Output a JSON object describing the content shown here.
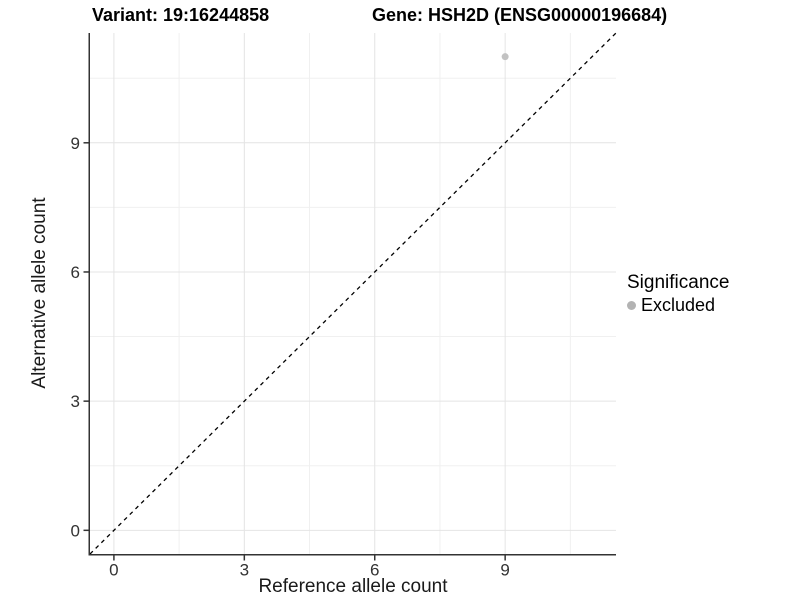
{
  "titles": {
    "variant": "Variant: 19:16244858",
    "gene": "Gene: HSH2D (ENSG00000196684)"
  },
  "chart_data": {
    "type": "scatter",
    "title_left": "Variant: 19:16244858",
    "title_right": "Gene: HSH2D (ENSG00000196684)",
    "xlabel": "Reference allele count",
    "ylabel": "Alternative allele count",
    "xlim": [
      -0.55,
      11.55
    ],
    "ylim": [
      -0.55,
      11.55
    ],
    "x_ticks": [
      0,
      3,
      6,
      9
    ],
    "y_ticks": [
      0,
      3,
      6,
      9
    ],
    "x_minor_ticks": [
      1.5,
      4.5,
      7.5,
      10.5
    ],
    "y_minor_ticks": [
      1.5,
      4.5,
      7.5,
      10.5
    ],
    "grid": true,
    "points": [
      {
        "x": 9,
        "y": 11,
        "significance": "Excluded"
      }
    ],
    "diagonal": {
      "slope": 1,
      "intercept": 0,
      "style": "dashed"
    },
    "legend": {
      "position": "right",
      "title": "Significance",
      "entries": [
        {
          "label": "Excluded",
          "color": "#b3b3b3"
        }
      ]
    },
    "colors": {
      "point": "#c2c2c2",
      "diagonal": "#000000",
      "grid_major": "#e4e4e4",
      "grid_minor": "#f0f0f0",
      "axis_line": "#333333",
      "tick_label": "#333333"
    }
  }
}
